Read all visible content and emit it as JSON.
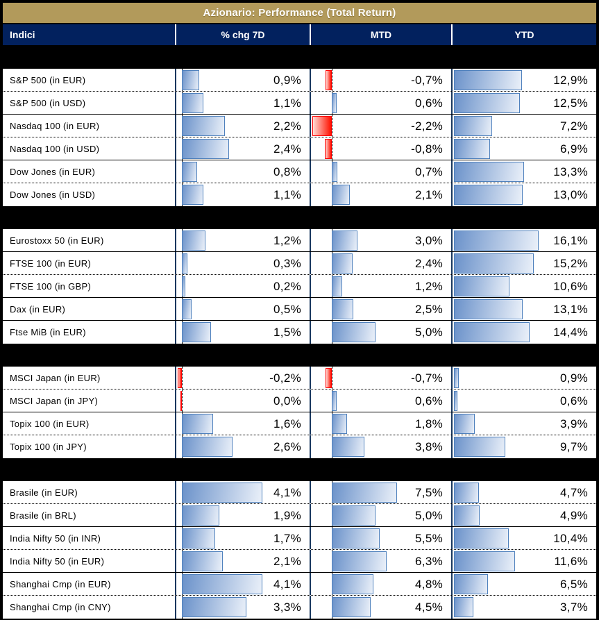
{
  "title": "Azionario: Performance (Total Return)",
  "columns": [
    "Indici",
    "% chg 7D",
    "MTD",
    "YTD"
  ],
  "colors": {
    "title_bg": "#B29A5B",
    "header_bg": "#02215E",
    "col_divider": "#17365D",
    "band": "#000000",
    "bar_positive_border": "#4F81BD",
    "bar_positive_gradient_start": "#6B92CA",
    "bar_positive_gradient_end": "#EAF0F9",
    "bar_negative_border": "#FF0000",
    "bar_negative_gradient_start": "#FF1100",
    "bar_negative_gradient_end": "#FFD9D3",
    "text": "#000000"
  },
  "chart_data": {
    "type": "table",
    "title": "Azionario: Performance (Total Return)",
    "columns": [
      "Indici",
      "% chg 7D",
      "MTD",
      "YTD"
    ],
    "units": "percent",
    "number_format": "italian_decimal_comma_one_decimal",
    "bar_style": "excel-gradient-data-bars, blue positive, red negative, dashed zero axis, per-column shared scale",
    "groups": [
      {
        "rows": [
          {
            "label": "S&P 500 (in EUR)",
            "chg7d": 0.9,
            "mtd": -0.7,
            "ytd": 12.9,
            "divider": "dotted"
          },
          {
            "label": "S&P 500 (in USD)",
            "chg7d": 1.1,
            "mtd": 0.6,
            "ytd": 12.5,
            "divider": "solid"
          },
          {
            "label": "Nasdaq 100 (in EUR)",
            "chg7d": 2.2,
            "mtd": -2.2,
            "ytd": 7.2,
            "divider": "dotted"
          },
          {
            "label": "Nasdaq 100 (in USD)",
            "chg7d": 2.4,
            "mtd": -0.8,
            "ytd": 6.9,
            "divider": "solid"
          },
          {
            "label": "Dow Jones (in EUR)",
            "chg7d": 0.8,
            "mtd": 0.7,
            "ytd": 13.3,
            "divider": "dotted"
          },
          {
            "label": "Dow Jones (in USD)",
            "chg7d": 1.1,
            "mtd": 2.1,
            "ytd": 13.0
          }
        ]
      },
      {
        "rows": [
          {
            "label": "Eurostoxx 50 (in EUR)",
            "chg7d": 1.2,
            "mtd": 3.0,
            "ytd": 16.1,
            "divider": "solid"
          },
          {
            "label": "FTSE 100 (in EUR)",
            "chg7d": 0.3,
            "mtd": 2.4,
            "ytd": 15.2,
            "divider": "dotted"
          },
          {
            "label": "FTSE 100 (in GBP)",
            "chg7d": 0.2,
            "mtd": 1.2,
            "ytd": 10.6,
            "divider": "solid"
          },
          {
            "label": "Dax (in EUR)",
            "chg7d": 0.5,
            "mtd": 2.5,
            "ytd": 13.1,
            "divider": "solid"
          },
          {
            "label": "Ftse MiB (in EUR)",
            "chg7d": 1.5,
            "mtd": 5.0,
            "ytd": 14.4
          }
        ]
      },
      {
        "rows": [
          {
            "label": "MSCI Japan (in EUR)",
            "chg7d": -0.2,
            "mtd": -0.7,
            "ytd": 0.9,
            "divider": "dotted"
          },
          {
            "label": "MSCI Japan (in JPY)",
            "chg7d": 0.0,
            "chg7d_bar": -0.05,
            "mtd": 0.6,
            "ytd": 0.6,
            "divider": "solid"
          },
          {
            "label": "Topix 100 (in EUR)",
            "chg7d": 1.6,
            "mtd": 1.8,
            "ytd": 3.9,
            "divider": "dotted"
          },
          {
            "label": "Topix 100 (in JPY)",
            "chg7d": 2.6,
            "mtd": 3.8,
            "ytd": 9.7
          }
        ]
      },
      {
        "rows": [
          {
            "label": "Brasile (in EUR)",
            "chg7d": 4.1,
            "mtd": 7.5,
            "ytd": 4.7,
            "divider": "dotted"
          },
          {
            "label": "Brasile (in BRL)",
            "chg7d": 1.9,
            "mtd": 5.0,
            "ytd": 4.9,
            "divider": "solid"
          },
          {
            "label": "India Nifty 50 (in INR)",
            "chg7d": 1.7,
            "mtd": 5.5,
            "ytd": 10.4,
            "divider": "dotted"
          },
          {
            "label": "India Nifty 50 (in EUR)",
            "chg7d": 2.1,
            "mtd": 6.3,
            "ytd": 11.6,
            "divider": "solid"
          },
          {
            "label": "Shanghai Cmp (in EUR)",
            "chg7d": 4.1,
            "mtd": 4.8,
            "ytd": 6.5,
            "divider": "dotted"
          },
          {
            "label": "Shanghai Cmp (in CNY)",
            "chg7d": 3.3,
            "mtd": 4.5,
            "ytd": 3.7
          }
        ]
      }
    ]
  }
}
